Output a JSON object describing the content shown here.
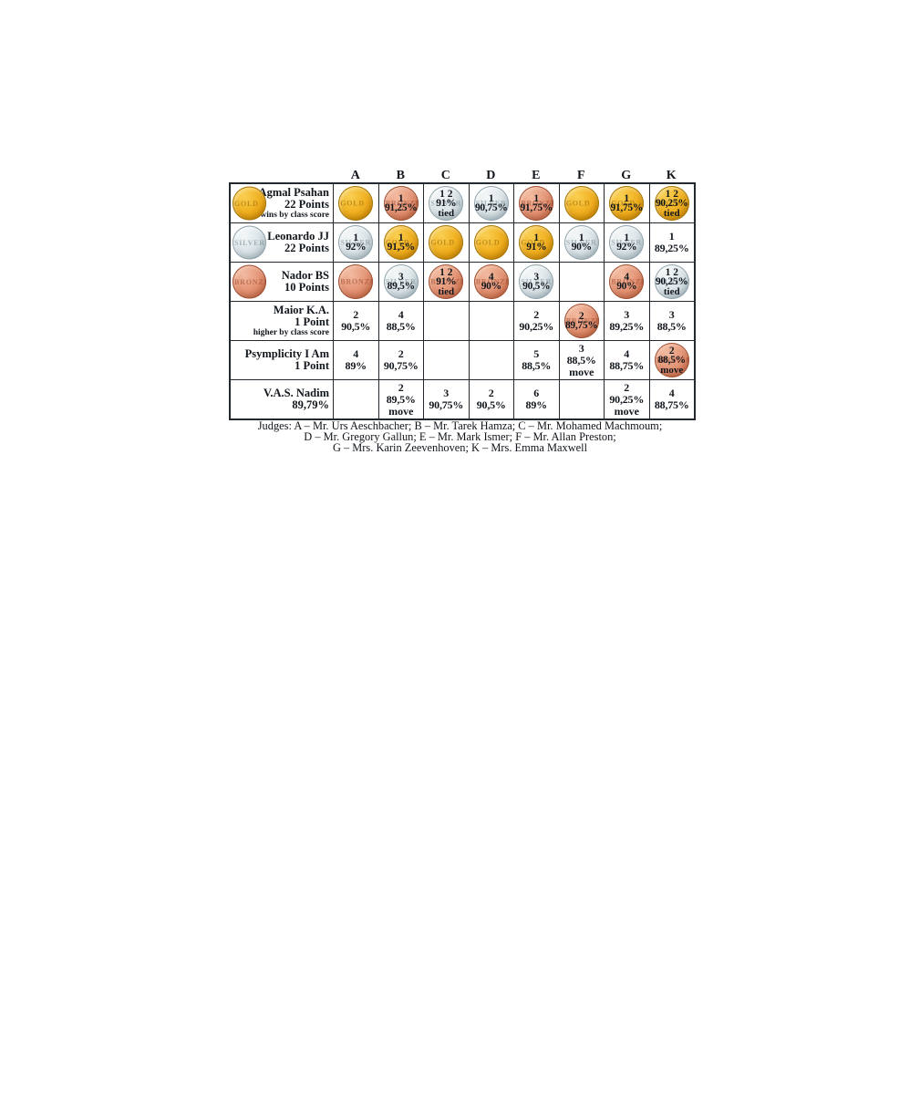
{
  "judge_letters": [
    "A",
    "B",
    "C",
    "D",
    "E",
    "F",
    "G",
    "K"
  ],
  "medal_labels": {
    "gold": "GOLD",
    "silver": "SILVER",
    "bronze": "BRONZE"
  },
  "colors": {
    "gold": "#f0b122",
    "silver": "#dbe3e6",
    "bronze": "#e29174",
    "border": "#23292f",
    "text": "#12171d"
  },
  "competitors": [
    {
      "name": "Agmal Psahan",
      "points": "22 Points",
      "note": "wins by class score",
      "medal": "gold",
      "cells": [
        {
          "medal": "gold"
        },
        {
          "medal": "bronze",
          "rank": "1",
          "score": "91,25%"
        },
        {
          "medal": "silver",
          "rank": "1 2",
          "score": "91%",
          "flag": "tied"
        },
        {
          "medal": "silver",
          "rank": "1",
          "score": "90,75%"
        },
        {
          "medal": "bronze",
          "rank": "1",
          "score": "91,75%"
        },
        {
          "medal": "gold"
        },
        {
          "medal": "gold",
          "rank": "1",
          "score": "91,75%"
        },
        {
          "medal": "gold",
          "rank": "1 2",
          "score": "90,25%",
          "flag": "tied"
        }
      ]
    },
    {
      "name": "Leonardo JJ",
      "points": "22 Points",
      "note": null,
      "medal": "silver",
      "cells": [
        {
          "medal": "silver",
          "rank": "1",
          "score": "92%"
        },
        {
          "medal": "gold",
          "rank": "1",
          "score": "91,5%"
        },
        {
          "medal": "gold"
        },
        {
          "medal": "gold"
        },
        {
          "medal": "gold",
          "rank": "1",
          "score": "91%"
        },
        {
          "medal": "silver",
          "rank": "1",
          "score": "90%"
        },
        {
          "medal": "silver",
          "rank": "1",
          "score": "92%"
        },
        {
          "medal": null,
          "rank": "1",
          "score": "89,25%"
        }
      ]
    },
    {
      "name": "Nador BS",
      "points": "10 Points",
      "note": null,
      "medal": "bronze",
      "cells": [
        {
          "medal": "bronze"
        },
        {
          "medal": "silver",
          "rank": "3",
          "score": "89,5%"
        },
        {
          "medal": "bronze",
          "rank": "1 2",
          "score": "91%",
          "flag": "tied"
        },
        {
          "medal": "bronze",
          "rank": "4",
          "score": "90%"
        },
        {
          "medal": "silver",
          "rank": "3",
          "score": "90,5%"
        },
        null,
        {
          "medal": "bronze",
          "rank": "4",
          "score": "90%"
        },
        {
          "medal": "silver",
          "rank": "1 2",
          "score": "90,25%",
          "flag": "tied"
        }
      ]
    },
    {
      "name": "Maior K.A.",
      "points": "1 Point",
      "note": "higher by class score",
      "medal": null,
      "cells": [
        {
          "medal": null,
          "rank": "2",
          "score": "90,5%"
        },
        {
          "medal": null,
          "rank": "4",
          "score": "88,5%"
        },
        null,
        null,
        {
          "medal": null,
          "rank": "2",
          "score": "90,25%"
        },
        {
          "medal": "bronze",
          "rank": "2",
          "score": "89,75%"
        },
        {
          "medal": null,
          "rank": "3",
          "score": "89,25%"
        },
        {
          "medal": null,
          "rank": "3",
          "score": "88,5%"
        }
      ]
    },
    {
      "name": "Psymplicity I Am",
      "points": "1 Point",
      "note": null,
      "medal": null,
      "cells": [
        {
          "medal": null,
          "rank": "4",
          "score": "89%"
        },
        {
          "medal": null,
          "rank": "2",
          "score": "90,75%"
        },
        null,
        null,
        {
          "medal": null,
          "rank": "5",
          "score": "88,5%"
        },
        {
          "medal": null,
          "rank": "3",
          "score": "88,5%",
          "flag": "move"
        },
        {
          "medal": null,
          "rank": "4",
          "score": "88,75%"
        },
        {
          "medal": "bronze",
          "rank": "2",
          "score": "88,5%",
          "flag": "move"
        }
      ]
    },
    {
      "name": "V.A.S. Nadim",
      "points": "89,79%",
      "note": null,
      "medal": null,
      "cells": [
        null,
        {
          "medal": null,
          "rank": "2",
          "score": "89,5%",
          "flag": "move"
        },
        {
          "medal": null,
          "rank": "3",
          "score": "90,75%"
        },
        {
          "medal": null,
          "rank": "2",
          "score": "90,5%"
        },
        {
          "medal": null,
          "rank": "6",
          "score": "89%"
        },
        null,
        {
          "medal": null,
          "rank": "2",
          "score": "90,25%",
          "flag": "move"
        },
        {
          "medal": null,
          "rank": "4",
          "score": "88,75%"
        }
      ]
    }
  ],
  "judges_legend": {
    "lines": [
      "Judges: A – Mr. Urs Aeschbacher; B – Mr. Tarek Hamza; C – Mr. Mohamed Machmoum;",
      "D – Mr. Gregory Gallun; E – Mr. Mark Ismer; F – Mr. Allan Preston;",
      "G – Mrs. Karin Zeevenhoven; K – Mrs. Emma Maxwell"
    ]
  }
}
